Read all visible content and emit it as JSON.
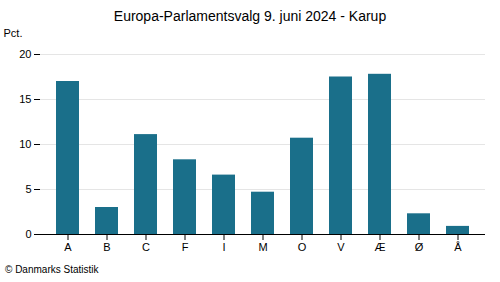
{
  "chart_data": {
    "type": "bar",
    "title": "Europa-Parlamentsvalg 9. juni 2024 - Karup",
    "ylabel": "Pct.",
    "caption": "© Danmarks Statistik",
    "categories": [
      "A",
      "B",
      "C",
      "F",
      "I",
      "M",
      "O",
      "V",
      "Æ",
      "Ø",
      "Å"
    ],
    "values": [
      17.0,
      3.0,
      11.1,
      8.3,
      6.6,
      4.7,
      10.7,
      17.5,
      17.8,
      2.3,
      0.9
    ],
    "color": "#1a6f8a",
    "ylim": [
      0,
      20
    ],
    "yticks": [
      0,
      5,
      10,
      15,
      20
    ],
    "grid": true
  }
}
